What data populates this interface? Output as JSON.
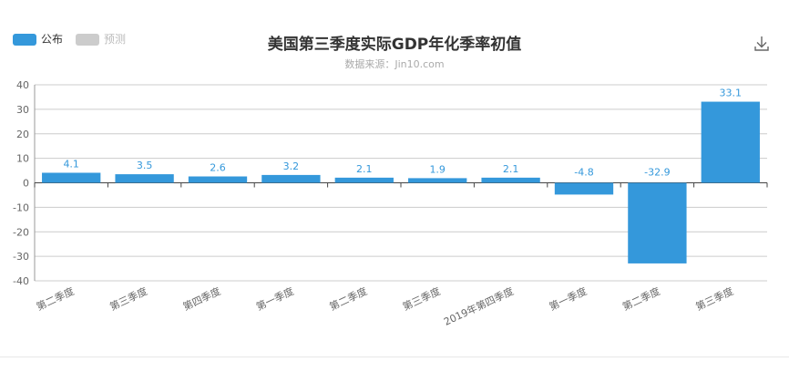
{
  "legend": {
    "items": [
      {
        "label": "公布",
        "color": "#3498db",
        "active": true
      },
      {
        "label": "预测",
        "color": "#cccccc",
        "active": false
      }
    ]
  },
  "icons": {
    "download": "download-icon"
  },
  "chart_data": {
    "type": "bar",
    "title": "美国第三季度实际GDP年化季率初值",
    "subtitle": "数据来源：Jin10.com",
    "categories": [
      "第二季度",
      "第三季度",
      "第四季度",
      "第一季度",
      "第二季度",
      "第三季度",
      "2019年第四季度",
      "第一季度",
      "第二季度",
      "第三季度"
    ],
    "series": [
      {
        "name": "公布",
        "color": "#3498db",
        "values": [
          4.1,
          3.5,
          2.6,
          3.2,
          2.1,
          1.9,
          2.1,
          -4.8,
          -32.9,
          33.1
        ]
      }
    ],
    "data_labels": [
      "4.1",
      "3.5",
      "2.6",
      "3.2",
      "2.1",
      "1.9",
      "2.1",
      "-4.8",
      "-32.9",
      "33.1"
    ],
    "ylim": [
      -40,
      40
    ],
    "yticks": [
      -40,
      -30,
      -20,
      -10,
      0,
      10,
      20,
      30,
      40
    ],
    "ytick_labels": [
      "-40",
      "-30",
      "-20",
      "-10",
      "0",
      "10",
      "20",
      "30",
      "40"
    ],
    "xlabel": "",
    "ylabel": "",
    "grid": true,
    "legend_position": "top-left"
  }
}
